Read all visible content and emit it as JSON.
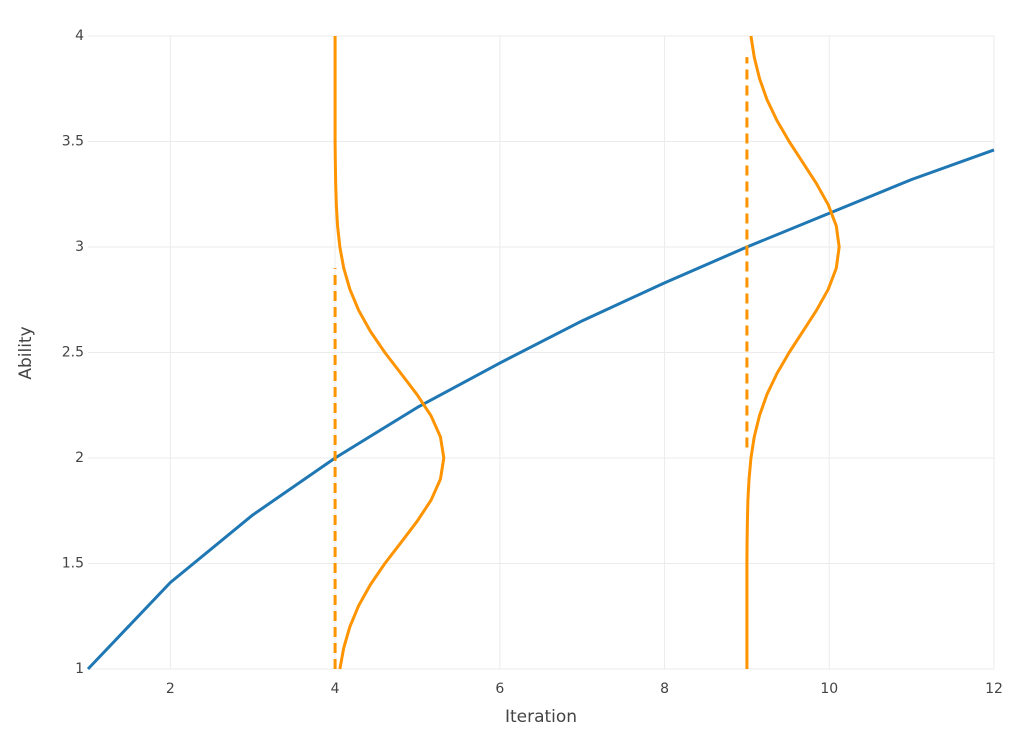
{
  "chart_data": {
    "type": "line",
    "xlabel": "Iteration",
    "ylabel": "Ability",
    "xlim": [
      1,
      12
    ],
    "xticks": [
      2,
      4,
      6,
      8,
      10,
      12
    ],
    "ylim": [
      1,
      4
    ],
    "yticks": [
      1,
      1.5,
      2,
      2.5,
      3,
      3.5,
      4
    ],
    "grid": true,
    "series": [
      {
        "color": "#1f77b4",
        "dash": false,
        "x": [
          1,
          2,
          3,
          4,
          5,
          6,
          7,
          8,
          9,
          10,
          11,
          12
        ],
        "values": [
          1,
          1.41,
          1.73,
          2.0,
          2.24,
          2.45,
          2.65,
          2.83,
          3.0,
          3.16,
          3.32,
          3.46
        ]
      },
      {
        "color": "#ff9400",
        "dash": false,
        "x": [
          4.058,
          4.105,
          4.179,
          4.286,
          4.429,
          4.604,
          4.801,
          4.996,
          5.165,
          5.279,
          5.32,
          5.279,
          5.165,
          4.996,
          4.801,
          4.604,
          4.429,
          4.286,
          4.179,
          4.105,
          4.058,
          4.03,
          4.015,
          4.007,
          4.003,
          4,
          4,
          4,
          4,
          4,
          4
        ],
        "values": [
          1,
          1.1,
          1.2,
          1.3,
          1.4,
          1.5,
          1.6,
          1.7,
          1.8,
          1.9,
          2,
          2.1,
          2.2,
          2.3,
          2.4,
          2.5,
          2.6,
          2.7,
          2.8,
          2.9,
          3,
          3.1,
          3.2,
          3.3,
          3.4,
          3.5,
          3.6,
          3.7,
          3.8,
          3.9,
          4
        ]
      },
      {
        "color": "#ff9400",
        "dash": false,
        "x": [
          9,
          9,
          9,
          9,
          9,
          9,
          9.002,
          9.006,
          9.012,
          9.026,
          9.049,
          9.089,
          9.152,
          9.242,
          9.364,
          9.513,
          9.679,
          9.845,
          9.988,
          10.085,
          10.12,
          10.085,
          9.988,
          9.845,
          9.679,
          9.513,
          9.364,
          9.242,
          9.152,
          9.089,
          9.049
        ],
        "values": [
          1,
          1.1,
          1.2,
          1.3,
          1.4,
          1.5,
          1.6,
          1.7,
          1.8,
          1.9,
          2,
          2.1,
          2.2,
          2.3,
          2.4,
          2.5,
          2.6,
          2.7,
          2.8,
          2.9,
          3,
          3.1,
          3.2,
          3.3,
          3.4,
          3.5,
          3.6,
          3.7,
          3.8,
          3.9,
          4
        ]
      },
      {
        "color": "#ff9400",
        "dash": true,
        "x": [
          4,
          4
        ],
        "values": [
          1,
          2.9
        ]
      },
      {
        "color": "#ff9400",
        "dash": true,
        "x": [
          9,
          9
        ],
        "values": [
          2.05,
          3.9
        ]
      }
    ]
  }
}
